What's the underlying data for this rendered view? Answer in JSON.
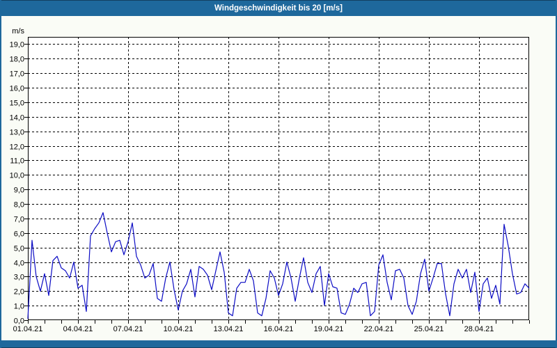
{
  "window": {
    "title": "Windgeschwindigkeit bis 20 [m/s]",
    "frame_color": "#1e689c",
    "background_color": "#fafcf6",
    "title_text_color": "#ffffff"
  },
  "chart_data": {
    "type": "line",
    "title": "Windgeschwindigkeit bis 20 [m/s]",
    "ylabel": "m/s",
    "xlabel": "",
    "ylim": [
      0,
      19.5
    ],
    "ytick_step": 1,
    "ytick_labels": [
      "0,0",
      "1,0",
      "2,0",
      "3,0",
      "4,0",
      "5,0",
      "6,0",
      "7,0",
      "8,0",
      "9,0",
      "10,0",
      "11,0",
      "12,0",
      "13,0",
      "14,0",
      "15,0",
      "16,0",
      "17,0",
      "18,0",
      "19,0"
    ],
    "x_days_total": 30,
    "x_start_label": "01.04.21",
    "xticks": [
      {
        "day": 0,
        "label": "01.04.21"
      },
      {
        "day": 3,
        "label": "04.04.21"
      },
      {
        "day": 6,
        "label": "07.04.21"
      },
      {
        "day": 9,
        "label": "10.04.21"
      },
      {
        "day": 12,
        "label": "13.04.21"
      },
      {
        "day": 15,
        "label": "16.04.21"
      },
      {
        "day": 18,
        "label": "19.04.21"
      },
      {
        "day": 21,
        "label": "22.04.21"
      },
      {
        "day": 24,
        "label": "25.04.21"
      },
      {
        "day": 27,
        "label": "28.04.21"
      }
    ],
    "x_gridline_days": [
      3,
      6,
      9,
      12,
      15,
      18,
      21,
      24,
      27
    ],
    "x_minor_tick_step_days": 1,
    "grid": {
      "style": "dashed",
      "color": "#000000"
    },
    "legend": "none",
    "axis_color": "#000000",
    "plot_bg_color": "#ffffff",
    "series": [
      {
        "name": "Windgeschwindigkeit",
        "unit": "m/s",
        "color": "#0b0bc4",
        "interval_days": 0.25,
        "values": [
          0.1,
          5.5,
          3.0,
          2.0,
          3.2,
          1.7,
          4.1,
          4.4,
          3.6,
          3.4,
          2.9,
          4.0,
          2.2,
          2.4,
          0.6,
          5.8,
          6.3,
          6.7,
          7.4,
          6.0,
          4.7,
          5.4,
          5.5,
          4.5,
          5.4,
          6.7,
          4.4,
          3.8,
          2.9,
          3.1,
          3.9,
          1.5,
          1.3,
          2.9,
          4.0,
          2.1,
          0.7,
          2.0,
          2.5,
          3.5,
          1.6,
          3.7,
          3.5,
          3.1,
          2.1,
          3.4,
          4.7,
          3.3,
          0.5,
          0.3,
          2.2,
          2.6,
          2.6,
          3.5,
          2.7,
          0.5,
          0.3,
          1.5,
          3.4,
          2.9,
          1.7,
          2.5,
          4.0,
          2.9,
          1.3,
          2.9,
          4.3,
          2.6,
          1.9,
          3.2,
          3.7,
          1.0,
          3.2,
          2.3,
          2.2,
          0.5,
          0.4,
          1.1,
          2.2,
          1.9,
          2.5,
          2.6,
          0.3,
          0.6,
          3.8,
          4.5,
          2.6,
          1.4,
          3.4,
          3.5,
          2.9,
          1.0,
          0.4,
          1.3,
          3.2,
          4.2,
          2.0,
          2.9,
          3.9,
          3.9,
          1.8,
          0.3,
          2.5,
          3.5,
          2.9,
          3.5,
          1.9,
          3.3,
          0.6,
          2.5,
          2.9,
          1.5,
          2.4,
          1.1,
          6.6,
          5.1,
          3.2,
          1.8,
          1.9,
          2.5,
          2.2
        ]
      }
    ]
  }
}
